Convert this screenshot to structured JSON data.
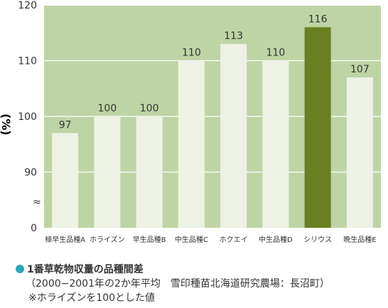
{
  "chart_data": {
    "type": "bar",
    "categories": [
      "極早生品種A",
      "ホライズン",
      "早生品種B",
      "中生品種C",
      "ホクエイ",
      "中生品種D",
      "シリウス",
      "晩生品種E"
    ],
    "values": [
      97,
      100,
      100,
      110,
      113,
      110,
      116,
      107
    ],
    "value_labels": [
      "97",
      "100",
      "100",
      "110",
      "113",
      "110",
      "116",
      "107"
    ],
    "ylabel": "(%)",
    "yticks": [
      "0",
      "90",
      "100",
      "110",
      "120"
    ],
    "ytick_values": [
      0,
      90,
      100,
      110,
      120
    ],
    "ylim": [
      0,
      120
    ],
    "axis_break_symbol": "≈",
    "grid": true,
    "highlight_category": "シリウス",
    "colors": {
      "plot_background": "#bfd4a4",
      "bar": "#eef2e4",
      "highlight_bar": "#6a7f1f",
      "gridline": "#ffffff",
      "text": "#333333"
    }
  },
  "caption": {
    "line1": "1番草乾物収量の品種間差",
    "line2": "（2000−2001年の2か年平均　雪印種苗北海道研究農場：長沼町）",
    "line3": "※ホライズンを100とした値",
    "bullet_color": "#2aa7b8"
  }
}
